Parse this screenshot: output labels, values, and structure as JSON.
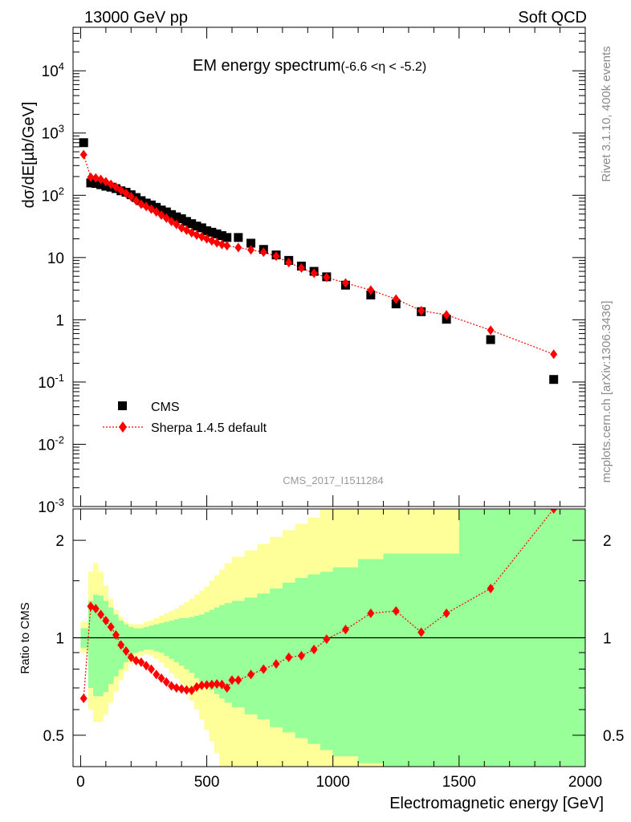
{
  "header": {
    "left": "13000 GeV pp",
    "right": "Soft QCD"
  },
  "title": {
    "main": "EM energy spectrum",
    "range": "(-6.6 <η < -5.2)"
  },
  "side_labels": {
    "rivet": "Rivet 3.1.10,  400k events",
    "mcplots": "mcplots.cern.ch [arXiv:1306.3436]"
  },
  "analysis_label": "CMS_2017_I1511284",
  "colors": {
    "cms": "#000000",
    "sherpa": "#ff0000",
    "band_inner": "#99ff99",
    "band_outer": "#ffff99"
  },
  "chart_data": [
    {
      "type": "scatter",
      "panel": "main",
      "ylabel": "dσ/dE[µb/GeV]",
      "yscale": "log",
      "ylim": [
        0.001,
        50000
      ],
      "xlim": [
        -30,
        2000
      ],
      "yticks": [
        "10^-3",
        "10^-2",
        "10^-1",
        "1",
        "10",
        "10^2",
        "10^3",
        "10^4"
      ],
      "legend": {
        "placement": "bottom-left",
        "entries": [
          "CMS",
          "Sherpa 1.4.5 default"
        ]
      },
      "series": [
        {
          "name": "CMS",
          "marker": "square",
          "points": [
            [
              12,
              700
            ],
            [
              40,
              158
            ],
            [
              60,
              155
            ],
            [
              80,
              148
            ],
            [
              100,
              140
            ],
            [
              120,
              135
            ],
            [
              140,
              128
            ],
            [
              160,
              118
            ],
            [
              180,
              112
            ],
            [
              200,
              102
            ],
            [
              220,
              92
            ],
            [
              240,
              82
            ],
            [
              260,
              75
            ],
            [
              280,
              70
            ],
            [
              300,
              64
            ],
            [
              320,
              58
            ],
            [
              340,
              54
            ],
            [
              360,
              49
            ],
            [
              380,
              45
            ],
            [
              400,
              42
            ],
            [
              420,
              38
            ],
            [
              440,
              35
            ],
            [
              460,
              32
            ],
            [
              480,
              30
            ],
            [
              500,
              27
            ],
            [
              520,
              25.5
            ],
            [
              540,
              24
            ],
            [
              560,
              22.5
            ],
            [
              580,
              21
            ],
            [
              625,
              21
            ],
            [
              675,
              17
            ],
            [
              725,
              13.5
            ],
            [
              775,
              11
            ],
            [
              825,
              9
            ],
            [
              875,
              7.3
            ],
            [
              925,
              6
            ],
            [
              975,
              4.9
            ],
            [
              1050,
              3.6
            ],
            [
              1150,
              2.5
            ],
            [
              1250,
              1.8
            ],
            [
              1350,
              1.35
            ],
            [
              1450,
              1.02
            ],
            [
              1625,
              0.48
            ],
            [
              1875,
              0.11
            ]
          ]
        },
        {
          "name": "Sherpa 1.4.5 default",
          "marker": "diamond",
          "line": "dotted",
          "points": [
            [
              12,
              450
            ],
            [
              40,
              195
            ],
            [
              60,
              190
            ],
            [
              80,
              180
            ],
            [
              100,
              165
            ],
            [
              120,
              150
            ],
            [
              140,
              135
            ],
            [
              160,
              120
            ],
            [
              180,
              108
            ],
            [
              200,
              95
            ],
            [
              220,
              82
            ],
            [
              240,
              72
            ],
            [
              260,
              66
            ],
            [
              280,
              60
            ],
            [
              300,
              54
            ],
            [
              320,
              48
            ],
            [
              340,
              43
            ],
            [
              360,
              38
            ],
            [
              380,
              34
            ],
            [
              400,
              30
            ],
            [
              420,
              27.5
            ],
            [
              440,
              25
            ],
            [
              460,
              23
            ],
            [
              480,
              21.5
            ],
            [
              500,
              20
            ],
            [
              520,
              18.5
            ],
            [
              540,
              17.3
            ],
            [
              560,
              16.2
            ],
            [
              580,
              15.5
            ],
            [
              625,
              14.5
            ],
            [
              675,
              13.3
            ],
            [
              725,
              12.2
            ],
            [
              775,
              10.5
            ],
            [
              825,
              8.3
            ],
            [
              875,
              6.8
            ],
            [
              925,
              5.6
            ],
            [
              975,
              4.8
            ],
            [
              1050,
              3.9
            ],
            [
              1150,
              3.0
            ],
            [
              1250,
              2.15
            ],
            [
              1350,
              1.4
            ],
            [
              1450,
              1.2
            ],
            [
              1625,
              0.68
            ],
            [
              1875,
              0.28
            ]
          ]
        }
      ]
    },
    {
      "type": "line",
      "panel": "ratio",
      "xlabel": "Electromagnetic energy [GeV]",
      "ylabel": "Ratio to CMS",
      "yscale": "log",
      "ylim": [
        0.4,
        2.5
      ],
      "xlim": [
        -30,
        2000
      ],
      "xticks": [
        0,
        500,
        1000,
        1500,
        2000
      ],
      "yticks": [
        0.5,
        1,
        2
      ],
      "reference_line": 1,
      "bands": {
        "edges": [
          0,
          30,
          50,
          70,
          90,
          110,
          130,
          150,
          170,
          190,
          210,
          230,
          250,
          270,
          290,
          310,
          330,
          350,
          370,
          390,
          410,
          430,
          450,
          470,
          490,
          510,
          530,
          550,
          570,
          600,
          650,
          700,
          750,
          800,
          850,
          900,
          950,
          1000,
          1100,
          1200,
          1300,
          1400,
          1500,
          1750,
          2000
        ],
        "inner_low": [
          0.93,
          0.7,
          0.66,
          0.66,
          0.68,
          0.72,
          0.76,
          0.8,
          0.84,
          0.87,
          0.9,
          0.91,
          0.92,
          0.92,
          0.91,
          0.9,
          0.88,
          0.86,
          0.84,
          0.82,
          0.8,
          0.78,
          0.75,
          0.73,
          0.71,
          0.69,
          0.67,
          0.65,
          0.63,
          0.61,
          0.58,
          0.56,
          0.53,
          0.51,
          0.49,
          0.47,
          0.45,
          0.43,
          0.41,
          0.39,
          0.38,
          0.38,
          0.38,
          0.38
        ],
        "inner_high": [
          1.07,
          1.3,
          1.36,
          1.35,
          1.3,
          1.24,
          1.18,
          1.13,
          1.1,
          1.08,
          1.07,
          1.07,
          1.08,
          1.09,
          1.1,
          1.11,
          1.12,
          1.13,
          1.14,
          1.15,
          1.15,
          1.16,
          1.17,
          1.18,
          1.2,
          1.22,
          1.24,
          1.26,
          1.28,
          1.3,
          1.33,
          1.37,
          1.42,
          1.48,
          1.53,
          1.57,
          1.6,
          1.65,
          1.75,
          1.82,
          1.82,
          1.82,
          2.5,
          2.5
        ],
        "outer_low": [
          0.9,
          0.6,
          0.55,
          0.55,
          0.58,
          0.63,
          0.68,
          0.74,
          0.79,
          0.83,
          0.87,
          0.88,
          0.89,
          0.88,
          0.86,
          0.84,
          0.81,
          0.78,
          0.75,
          0.72,
          0.68,
          0.64,
          0.6,
          0.56,
          0.52,
          0.48,
          0.44,
          0.4,
          0.4,
          0.4,
          0.4,
          0.4,
          0.4,
          0.4,
          0.4,
          0.4,
          0.4,
          0.4,
          0.4,
          0.4,
          0.4,
          0.4,
          0.4,
          0.4
        ],
        "outer_high": [
          1.12,
          1.6,
          1.7,
          1.6,
          1.45,
          1.32,
          1.22,
          1.16,
          1.12,
          1.1,
          1.1,
          1.1,
          1.12,
          1.13,
          1.15,
          1.17,
          1.19,
          1.21,
          1.23,
          1.26,
          1.29,
          1.32,
          1.36,
          1.4,
          1.44,
          1.5,
          1.56,
          1.62,
          1.7,
          1.78,
          1.86,
          1.95,
          2.05,
          2.15,
          2.25,
          2.35,
          2.5,
          2.5,
          2.5,
          2.5,
          2.5,
          2.5,
          2.5,
          2.5
        ]
      },
      "series": [
        {
          "name": "Sherpa 1.4.5 default",
          "marker": "diamond",
          "line": "dotted",
          "points": [
            [
              12,
              0.65
            ],
            [
              40,
              1.25
            ],
            [
              60,
              1.23
            ],
            [
              80,
              1.18
            ],
            [
              100,
              1.13
            ],
            [
              120,
              1.08
            ],
            [
              140,
              1.02
            ],
            [
              160,
              0.95
            ],
            [
              180,
              0.91
            ],
            [
              200,
              0.87
            ],
            [
              220,
              0.85
            ],
            [
              240,
              0.84
            ],
            [
              260,
              0.82
            ],
            [
              280,
              0.8
            ],
            [
              300,
              0.77
            ],
            [
              320,
              0.75
            ],
            [
              340,
              0.73
            ],
            [
              360,
              0.71
            ],
            [
              380,
              0.7
            ],
            [
              400,
              0.695
            ],
            [
              420,
              0.69
            ],
            [
              440,
              0.688
            ],
            [
              460,
              0.705
            ],
            [
              480,
              0.713
            ],
            [
              500,
              0.715
            ],
            [
              520,
              0.717
            ],
            [
              540,
              0.72
            ],
            [
              560,
              0.717
            ],
            [
              580,
              0.7
            ],
            [
              600,
              0.74
            ],
            [
              625,
              0.74
            ],
            [
              675,
              0.77
            ],
            [
              725,
              0.8
            ],
            [
              775,
              0.83
            ],
            [
              825,
              0.87
            ],
            [
              875,
              0.88
            ],
            [
              925,
              0.92
            ],
            [
              975,
              0.99
            ],
            [
              1050,
              1.06
            ],
            [
              1150,
              1.19
            ],
            [
              1250,
              1.21
            ],
            [
              1350,
              1.04
            ],
            [
              1450,
              1.19
            ],
            [
              1625,
              1.42
            ],
            [
              1875,
              2.5
            ]
          ]
        }
      ]
    }
  ]
}
